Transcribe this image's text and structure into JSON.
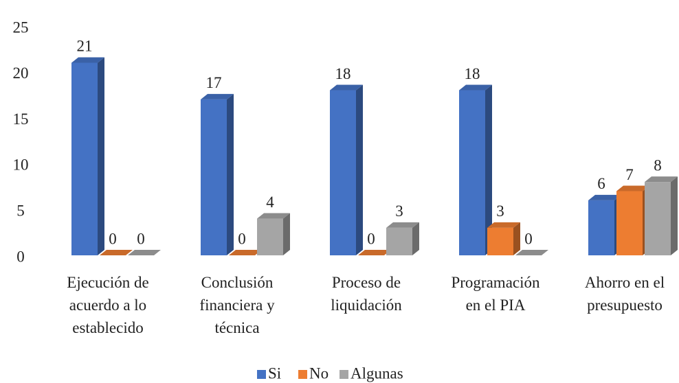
{
  "chart_data": {
    "type": "bar3d",
    "categories": [
      "Ejecución de\nacuerdo a lo\nestablecido",
      "Conclusión\nfinanciera y\ntécnica",
      "Proceso de\nliquidación",
      "Programación\nen el PIA",
      "Ahorro en el\npresupuesto"
    ],
    "series": [
      {
        "name": "Si",
        "color": "#4472c4",
        "values": [
          21,
          17,
          18,
          18,
          6
        ]
      },
      {
        "name": "No",
        "color": "#ed7d31",
        "values": [
          0,
          0,
          0,
          3,
          7
        ]
      },
      {
        "name": "Algunas",
        "color": "#a5a5a5",
        "values": [
          0,
          4,
          3,
          0,
          8
        ]
      }
    ],
    "ylim": [
      0,
      25
    ],
    "yticks": [
      0,
      5,
      10,
      15,
      20,
      25
    ],
    "grid": false,
    "legend": "bottom"
  }
}
